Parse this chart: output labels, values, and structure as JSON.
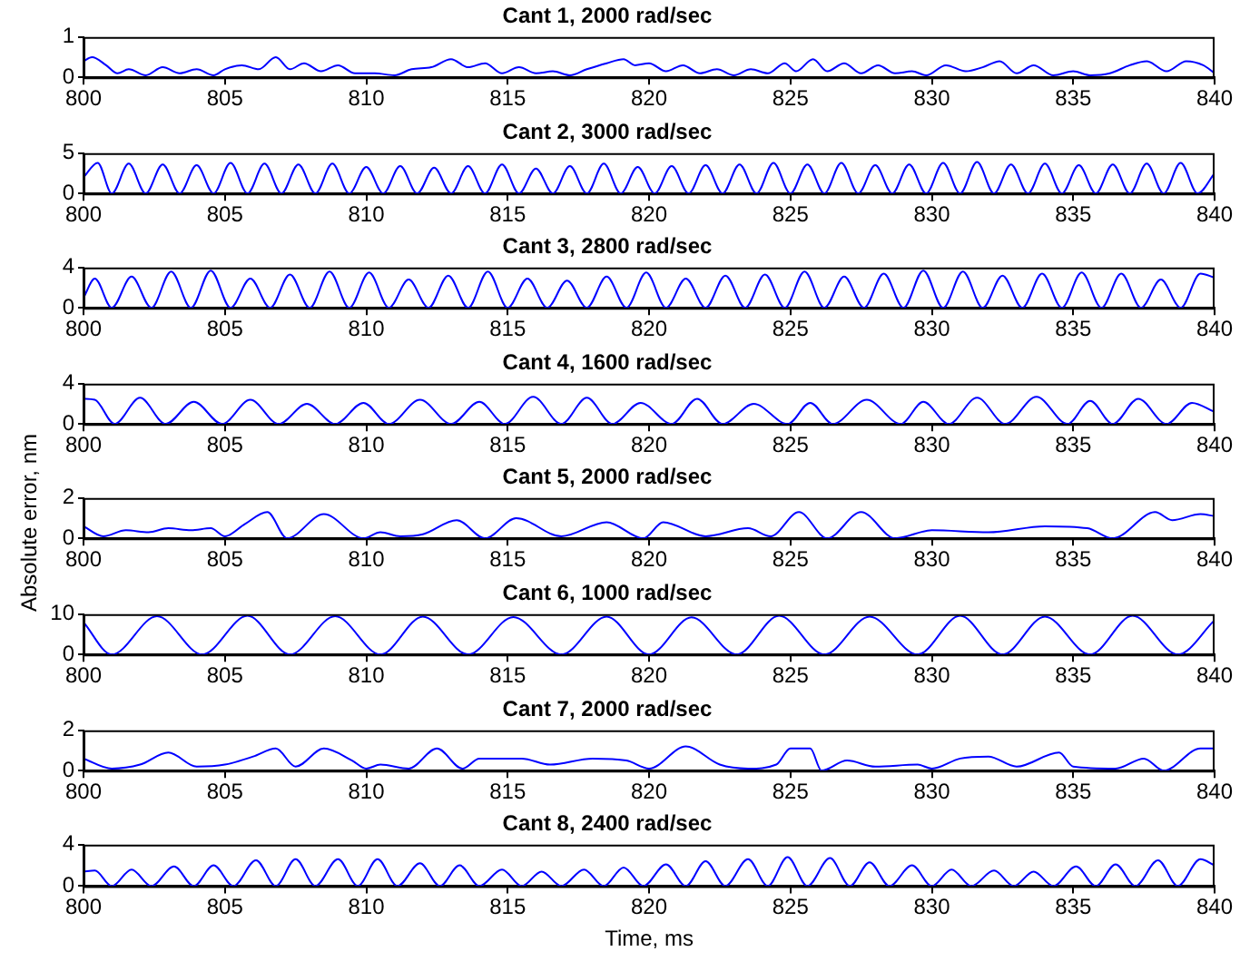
{
  "chart_data": [
    {
      "type": "line",
      "title": "Cant 1, 2000 rad/sec",
      "xlim": [
        800,
        840
      ],
      "xticks": [
        800,
        805,
        810,
        815,
        820,
        825,
        830,
        835,
        840
      ],
      "ylim": [
        0,
        1
      ],
      "yticks": [
        0,
        1
      ],
      "series": [
        {
          "color": "#0000ff",
          "x": [
            800,
            800.3,
            800.8,
            801.2,
            801.6,
            802.2,
            802.8,
            803.4,
            804,
            804.6,
            805,
            805.6,
            806.2,
            806.8,
            807.3,
            807.8,
            808.4,
            809,
            809.6,
            810.3,
            811,
            811.6,
            812.3,
            813,
            813.6,
            814.2,
            814.8,
            815.4,
            816,
            816.6,
            817.2,
            817.8,
            818.5,
            819.1,
            819.5,
            820,
            820.6,
            821.2,
            821.8,
            822.4,
            823,
            823.6,
            824.2,
            824.8,
            825.2,
            825.8,
            826.3,
            826.9,
            827.5,
            828.1,
            828.7,
            829.3,
            829.8,
            830.5,
            831.2,
            831.8,
            832.4,
            833,
            833.6,
            834.3,
            835,
            835.6,
            836.3,
            837,
            837.6,
            838.3,
            839,
            839.6,
            840
          ],
          "values": [
            0.4,
            0.5,
            0.3,
            0.1,
            0.2,
            0.05,
            0.25,
            0.1,
            0.2,
            0.05,
            0.2,
            0.3,
            0.2,
            0.5,
            0.2,
            0.35,
            0.15,
            0.3,
            0.1,
            0.1,
            0.05,
            0.2,
            0.25,
            0.45,
            0.25,
            0.35,
            0.1,
            0.25,
            0.1,
            0.15,
            0.05,
            0.2,
            0.35,
            0.45,
            0.3,
            0.35,
            0.15,
            0.3,
            0.1,
            0.2,
            0.05,
            0.2,
            0.1,
            0.35,
            0.15,
            0.45,
            0.15,
            0.35,
            0.1,
            0.3,
            0.1,
            0.15,
            0.05,
            0.3,
            0.15,
            0.25,
            0.4,
            0.1,
            0.3,
            0.05,
            0.15,
            0.05,
            0.1,
            0.3,
            0.4,
            0.15,
            0.4,
            0.3,
            0.1
          ]
        }
      ]
    },
    {
      "type": "line",
      "title": "Cant 2, 3000 rad/sec",
      "xlim": [
        800,
        840
      ],
      "xticks": [
        800,
        805,
        810,
        815,
        820,
        825,
        830,
        835,
        840
      ],
      "ylim": [
        0,
        5
      ],
      "yticks": [
        0,
        5
      ],
      "series": [
        {
          "color": "#0000ff",
          "x": [
            800,
            800.5,
            801,
            801.6,
            802.2,
            802.8,
            803.4,
            804,
            804.6,
            805.2,
            805.8,
            806.4,
            807,
            807.6,
            808.2,
            808.8,
            809.4,
            810,
            810.6,
            811.2,
            811.8,
            812.4,
            813,
            813.6,
            814.2,
            814.8,
            815.4,
            816,
            816.6,
            817.2,
            817.8,
            818.4,
            819,
            819.6,
            820.2,
            820.8,
            821.4,
            822,
            822.6,
            823.2,
            823.8,
            824.4,
            825,
            825.6,
            826.2,
            826.8,
            827.4,
            828,
            828.6,
            829.2,
            829.8,
            830.4,
            831,
            831.6,
            832.2,
            832.8,
            833.4,
            834,
            834.6,
            835.2,
            835.8,
            836.4,
            837,
            837.6,
            838.2,
            838.8,
            839.4,
            840
          ],
          "values": [
            2,
            3.8,
            0,
            3.7,
            0,
            3.6,
            0,
            3.5,
            0,
            3.8,
            0,
            3.7,
            0,
            3.6,
            0,
            3.7,
            0,
            3.3,
            0,
            3.4,
            0,
            3.2,
            0,
            3.4,
            0,
            3.6,
            0,
            3.1,
            0,
            3.4,
            0,
            3.7,
            0,
            3.3,
            0,
            3.4,
            0,
            3.5,
            0,
            3.6,
            0,
            3.8,
            0,
            3.6,
            0,
            3.8,
            0,
            3.5,
            0,
            3.6,
            0,
            3.8,
            0,
            3.9,
            0,
            3.6,
            0,
            3.7,
            0,
            3.5,
            0,
            3.6,
            0,
            3.7,
            0,
            3.8,
            0,
            2.5
          ]
        }
      ]
    },
    {
      "type": "line",
      "title": "Cant 3, 2800 rad/sec",
      "xlim": [
        800,
        840
      ],
      "xticks": [
        800,
        805,
        810,
        815,
        820,
        825,
        830,
        835,
        840
      ],
      "ylim": [
        0,
        4
      ],
      "yticks": [
        0,
        4
      ],
      "series": [
        {
          "color": "#0000ff",
          "x": [
            800,
            800.4,
            801,
            801.7,
            802.4,
            803.1,
            803.8,
            804.5,
            805.2,
            805.9,
            806.6,
            807.3,
            808,
            808.7,
            809.4,
            810.1,
            810.8,
            811.5,
            812.2,
            812.9,
            813.6,
            814.3,
            815,
            815.7,
            816.4,
            817.1,
            817.8,
            818.5,
            819.2,
            819.9,
            820.6,
            821.3,
            822,
            822.7,
            823.4,
            824.1,
            824.8,
            825.5,
            826.2,
            826.9,
            827.6,
            828.3,
            829,
            829.7,
            830.4,
            831.1,
            831.8,
            832.5,
            833.2,
            833.9,
            834.6,
            835.3,
            836,
            836.7,
            837.4,
            838.1,
            838.8,
            839.5,
            840
          ],
          "values": [
            1,
            2.9,
            0,
            3.1,
            0,
            3.6,
            0,
            3.7,
            0,
            2.9,
            0,
            3.3,
            0,
            3.6,
            0,
            3.5,
            0,
            2.8,
            0,
            3.2,
            0,
            3.6,
            0,
            2.9,
            0,
            2.7,
            0,
            3.1,
            0,
            3.5,
            0,
            2.9,
            0,
            3.2,
            0,
            3.3,
            0,
            3.6,
            0,
            3.1,
            0,
            3.4,
            0,
            3.7,
            0,
            3.6,
            0,
            3.2,
            0,
            3.4,
            0,
            3.5,
            0,
            3.4,
            0,
            2.8,
            0,
            3.4,
            3
          ]
        }
      ]
    },
    {
      "type": "line",
      "title": "Cant 4, 1600 rad/sec",
      "xlim": [
        800,
        840
      ],
      "xticks": [
        800,
        805,
        810,
        815,
        820,
        825,
        830,
        835,
        840
      ],
      "ylim": [
        0,
        4
      ],
      "yticks": [
        0,
        4
      ],
      "series": [
        {
          "color": "#0000ff",
          "x": [
            800,
            800.4,
            801.1,
            802,
            802.9,
            803.9,
            804.9,
            805.9,
            806.9,
            807.9,
            808.9,
            809.9,
            810.8,
            811.9,
            813,
            814,
            814.9,
            815.9,
            816.9,
            817.8,
            818.7,
            819.7,
            820.8,
            821.7,
            822.6,
            823.7,
            824.9,
            825.7,
            826.5,
            827.7,
            828.9,
            829.7,
            830.6,
            831.6,
            832.6,
            833.7,
            834.8,
            835.6,
            836.4,
            837.3,
            838.3,
            839.2,
            840
          ],
          "values": [
            2.5,
            2.4,
            0,
            2.6,
            0,
            2.2,
            0,
            2.4,
            0,
            2,
            0,
            2.1,
            0,
            2.4,
            0,
            2.2,
            0,
            2.7,
            0,
            2.6,
            0,
            2.1,
            0,
            2.5,
            0,
            2,
            0,
            2.1,
            0,
            2.4,
            0,
            2.2,
            0,
            2.6,
            0,
            2.7,
            0,
            2.3,
            0,
            2.5,
            0,
            2.1,
            1.2
          ]
        }
      ]
    },
    {
      "type": "line",
      "title": "Cant 5, 2000 rad/sec",
      "ylabel": "Absolute error, nm",
      "xlim": [
        800,
        840
      ],
      "xticks": [
        800,
        805,
        810,
        815,
        820,
        825,
        830,
        835,
        840
      ],
      "ylim": [
        0,
        2
      ],
      "yticks": [
        0,
        2
      ],
      "series": [
        {
          "color": "#0000ff",
          "x": [
            800,
            800.7,
            801.5,
            802.3,
            803,
            803.8,
            804.5,
            805,
            805.7,
            806.5,
            807.2,
            808.5,
            809.9,
            810.5,
            811.2,
            812,
            813.2,
            814.2,
            815.3,
            816.9,
            818.5,
            819.8,
            820.5,
            822,
            823.5,
            824.3,
            825.3,
            826.3,
            827.5,
            828.7,
            830,
            832,
            834,
            835.5,
            836.4,
            837.9,
            838.5,
            839.5,
            840
          ],
          "values": [
            0.6,
            0.1,
            0.4,
            0.3,
            0.5,
            0.4,
            0.5,
            0.1,
            0.7,
            1.3,
            0,
            1.2,
            0,
            0.3,
            0.1,
            0.2,
            0.9,
            0,
            1,
            0.1,
            0.8,
            0,
            0.8,
            0.1,
            0.5,
            0.1,
            1.3,
            0,
            1.3,
            0,
            0.4,
            0.3,
            0.6,
            0.5,
            0,
            1.3,
            0.9,
            1.2,
            1.1
          ]
        }
      ]
    },
    {
      "type": "line",
      "title": "Cant 6, 1000 rad/sec",
      "xlim": [
        800,
        840
      ],
      "xticks": [
        800,
        805,
        810,
        815,
        820,
        825,
        830,
        835,
        840
      ],
      "ylim": [
        0,
        10
      ],
      "yticks": [
        0,
        10
      ],
      "series": [
        {
          "color": "#0000ff",
          "x": [
            800,
            801,
            802.6,
            804.2,
            805.8,
            807.3,
            808.9,
            810.5,
            812,
            813.6,
            815.2,
            816.9,
            818.5,
            820,
            821.5,
            823.1,
            824.6,
            826.2,
            827.8,
            829.5,
            831,
            832.5,
            834,
            835.6,
            837.1,
            838.7,
            840
          ],
          "values": [
            8,
            0,
            9.5,
            0,
            9.6,
            0,
            9.5,
            0,
            9.4,
            0,
            9.3,
            0,
            9.4,
            0,
            9.2,
            0,
            9.6,
            0,
            9.4,
            0,
            9.6,
            0,
            9.4,
            0,
            9.6,
            0,
            8.5
          ]
        }
      ]
    },
    {
      "type": "line",
      "title": "Cant 7, 2000 rad/sec",
      "xlim": [
        800,
        840
      ],
      "xticks": [
        800,
        805,
        810,
        815,
        820,
        825,
        830,
        835,
        840
      ],
      "ylim": [
        0,
        2
      ],
      "yticks": [
        0,
        2
      ],
      "series": [
        {
          "color": "#0000ff",
          "x": [
            800,
            801,
            802,
            803,
            804,
            805,
            806,
            806.8,
            807.5,
            808.5,
            809.5,
            810,
            810.5,
            811.5,
            812.5,
            813.4,
            814,
            815.5,
            816.5,
            818,
            819.2,
            820,
            821.3,
            822.5,
            823.5,
            824.5,
            825,
            825.7,
            826.1,
            827,
            828,
            829.5,
            830,
            831,
            832,
            833,
            834.5,
            835,
            836.5,
            837.5,
            838.2,
            839.5,
            840
          ],
          "values": [
            0.6,
            0.1,
            0.3,
            0.9,
            0.2,
            0.3,
            0.7,
            1.1,
            0.2,
            1.1,
            0.5,
            0.1,
            0.3,
            0.1,
            1.1,
            0.1,
            0.6,
            0.6,
            0.3,
            0.6,
            0.5,
            0.1,
            1.2,
            0.3,
            0.1,
            0.3,
            1.1,
            1.1,
            0,
            0.5,
            0.2,
            0.3,
            0.1,
            0.6,
            0.7,
            0.2,
            0.9,
            0.2,
            0.1,
            0.6,
            0,
            1.1,
            1.1
          ]
        }
      ]
    },
    {
      "type": "line",
      "title": "Cant 8, 2400 rad/sec",
      "xlabel": "Time, ms",
      "xlim": [
        800,
        840
      ],
      "xticks": [
        800,
        805,
        810,
        815,
        820,
        825,
        830,
        835,
        840
      ],
      "ylim": [
        0,
        4
      ],
      "yticks": [
        0,
        4
      ],
      "series": [
        {
          "color": "#0000ff",
          "x": [
            800,
            800.4,
            801,
            801.7,
            802.4,
            803.2,
            803.9,
            804.6,
            805.3,
            806.1,
            806.8,
            807.5,
            808.2,
            809,
            809.7,
            810.4,
            811.1,
            811.9,
            812.6,
            813.3,
            814,
            814.8,
            815.5,
            816.2,
            816.9,
            817.7,
            818.4,
            819.1,
            819.8,
            820.6,
            821.3,
            822,
            822.7,
            823.5,
            824.2,
            824.9,
            825.6,
            826.4,
            827.1,
            827.8,
            828.5,
            829.3,
            830,
            830.7,
            831.4,
            832.2,
            832.9,
            833.6,
            834.3,
            835.1,
            835.8,
            836.5,
            837.2,
            838,
            838.7,
            839.5,
            840
          ],
          "values": [
            1.4,
            1.5,
            0,
            1.6,
            0,
            1.9,
            0,
            2,
            0,
            2.5,
            0,
            2.6,
            0,
            2.6,
            0,
            2.6,
            0,
            2.2,
            0,
            2,
            0,
            1.6,
            0,
            1.4,
            0,
            1.6,
            0,
            1.8,
            0,
            2.1,
            0,
            2.4,
            0,
            2.6,
            0,
            2.8,
            0,
            2.7,
            0,
            2.3,
            0,
            2,
            0,
            1.6,
            0,
            1.5,
            0,
            1.4,
            0,
            1.9,
            0,
            2.1,
            0,
            2.5,
            0,
            2.6,
            2
          ]
        }
      ]
    }
  ]
}
